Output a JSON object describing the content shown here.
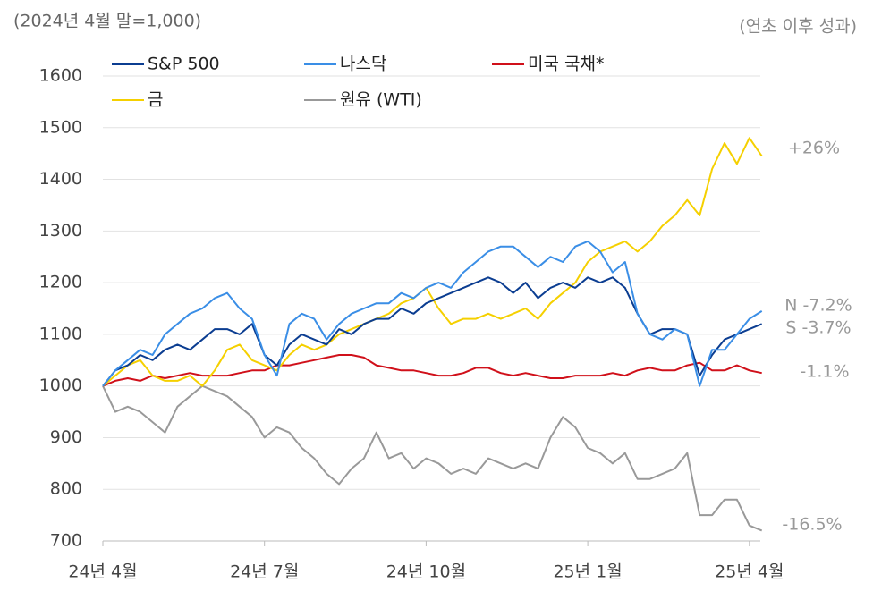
{
  "chart_data": {
    "type": "line",
    "subtitle": "(2024년 4월 말=1,000)",
    "note": "(연초 이후 성과)",
    "categories": [
      "24년 4월",
      null,
      null,
      null,
      null,
      null,
      null,
      null,
      null,
      null,
      null,
      null,
      null,
      "24년 7월",
      null,
      null,
      null,
      null,
      null,
      null,
      null,
      null,
      null,
      null,
      null,
      null,
      "24년 10월",
      null,
      null,
      null,
      null,
      null,
      null,
      null,
      null,
      null,
      null,
      null,
      null,
      "25년 1월",
      null,
      null,
      null,
      null,
      null,
      null,
      null,
      null,
      null,
      null,
      null,
      null,
      "25년 4월",
      null
    ],
    "series": [
      {
        "name": "S&P 500",
        "color": "#0b3d91",
        "values": [
          1000,
          1030,
          1040,
          1060,
          1050,
          1070,
          1080,
          1070,
          1090,
          1110,
          1110,
          1100,
          1120,
          1060,
          1040,
          1080,
          1100,
          1090,
          1080,
          1110,
          1100,
          1120,
          1130,
          1130,
          1150,
          1140,
          1160,
          1170,
          1180,
          1190,
          1200,
          1210,
          1200,
          1180,
          1200,
          1170,
          1190,
          1200,
          1190,
          1210,
          1200,
          1210,
          1190,
          1140,
          1100,
          1110,
          1110,
          1100,
          1020,
          1060,
          1090,
          1100,
          1110,
          1120
        ]
      },
      {
        "name": "나스닥",
        "color": "#3a8ee6",
        "values": [
          1000,
          1030,
          1050,
          1070,
          1060,
          1100,
          1120,
          1140,
          1150,
          1170,
          1180,
          1150,
          1130,
          1060,
          1020,
          1120,
          1140,
          1130,
          1090,
          1120,
          1140,
          1150,
          1160,
          1160,
          1180,
          1170,
          1190,
          1200,
          1190,
          1220,
          1240,
          1260,
          1270,
          1270,
          1250,
          1230,
          1250,
          1240,
          1270,
          1280,
          1260,
          1220,
          1240,
          1140,
          1100,
          1090,
          1110,
          1100,
          1000,
          1070,
          1070,
          1100,
          1130,
          1145
        ]
      },
      {
        "name": "미국 국채*",
        "color": "#d0101a",
        "values": [
          1000,
          1010,
          1015,
          1010,
          1020,
          1015,
          1020,
          1025,
          1020,
          1020,
          1020,
          1025,
          1030,
          1030,
          1040,
          1040,
          1045,
          1050,
          1055,
          1060,
          1060,
          1055,
          1040,
          1035,
          1030,
          1030,
          1025,
          1020,
          1020,
          1025,
          1035,
          1035,
          1025,
          1020,
          1025,
          1020,
          1015,
          1015,
          1020,
          1020,
          1020,
          1025,
          1020,
          1030,
          1035,
          1030,
          1030,
          1040,
          1045,
          1030,
          1030,
          1040,
          1030,
          1025
        ]
      },
      {
        "name": "금",
        "color": "#f5d000",
        "values": [
          1000,
          1020,
          1040,
          1050,
          1020,
          1010,
          1010,
          1020,
          1000,
          1030,
          1070,
          1080,
          1050,
          1040,
          1030,
          1060,
          1080,
          1070,
          1080,
          1100,
          1110,
          1120,
          1130,
          1140,
          1160,
          1170,
          1190,
          1150,
          1120,
          1130,
          1130,
          1140,
          1130,
          1140,
          1150,
          1130,
          1160,
          1180,
          1200,
          1240,
          1260,
          1270,
          1280,
          1260,
          1280,
          1310,
          1330,
          1360,
          1330,
          1420,
          1470,
          1430,
          1480,
          1445
        ]
      },
      {
        "name": "원유 (WTI)",
        "color": "#999999",
        "values": [
          1000,
          950,
          960,
          950,
          930,
          910,
          960,
          980,
          1000,
          990,
          980,
          960,
          940,
          900,
          920,
          910,
          880,
          860,
          830,
          810,
          840,
          860,
          910,
          860,
          870,
          840,
          860,
          850,
          830,
          840,
          830,
          860,
          850,
          840,
          850,
          840,
          900,
          940,
          920,
          880,
          870,
          850,
          870,
          820,
          820,
          830,
          840,
          870,
          750,
          750,
          780,
          780,
          730,
          720
        ]
      }
    ],
    "annotations": [
      "+26%",
      "N -7.2%",
      "S -3.7%",
      "-1.1%",
      "-16.5%"
    ],
    "ylim": [
      700,
      1600
    ],
    "yticks": [
      700,
      800,
      900,
      1000,
      1100,
      1200,
      1300,
      1400,
      1500,
      1600
    ],
    "grid": true
  }
}
